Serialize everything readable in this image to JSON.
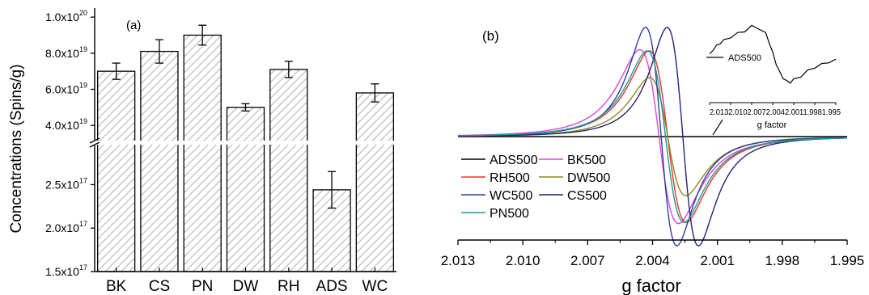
{
  "figure": {
    "panel_a_label": "(a)",
    "panel_b_label": "(b)"
  },
  "chart_data": [
    {
      "type": "bar",
      "panel": "(a)",
      "ylabel": "Concentrations (Spins/g)",
      "xlabel": "",
      "categories": [
        "BK",
        "CS",
        "PN",
        "DW",
        "RH",
        "ADS",
        "WC"
      ],
      "values": [
        7e+19,
        8.1e+19,
        9e+19,
        5e+19,
        7.1e+19,
        2.44e+17,
        5.8e+19
      ],
      "errors": [
        4.5e+18,
        6.5e+18,
        5.5e+18,
        2e+18,
        4.5e+18,
        2.1e+16,
        5e+18
      ],
      "axis_break": true,
      "upper_segment": {
        "range": [
          3.2e+19,
          1.05e+20
        ],
        "ticks": [
          {
            "value": 4e+19,
            "mant": "4.0x10",
            "exp": "19"
          },
          {
            "value": 6e+19,
            "mant": "6.0x10",
            "exp": "19"
          },
          {
            "value": 8e+19,
            "mant": "8.0x10",
            "exp": "19"
          },
          {
            "value": 1e+20,
            "mant": "1.0x10",
            "exp": "20"
          }
        ]
      },
      "lower_segment": {
        "range": [
          1.5e+17,
          2.95e+17
        ],
        "ticks": [
          {
            "value": 1.5e+17,
            "mant": "1.5x10",
            "exp": "17"
          },
          {
            "value": 2e+17,
            "mant": "2.0x10",
            "exp": "17"
          },
          {
            "value": 2.5e+17,
            "mant": "2.5x10",
            "exp": "17"
          }
        ]
      },
      "bar_fill": "hatched"
    },
    {
      "type": "line",
      "panel": "(b)",
      "xlabel": "g factor",
      "ylabel": "",
      "xlim": [
        2.013,
        1.995
      ],
      "x_reversed": true,
      "xticks": [
        "2.013",
        "2.010",
        "2.007",
        "2.004",
        "2.001",
        "1.998",
        "1.995"
      ],
      "series": [
        {
          "name": "ADS500",
          "color": "#000000",
          "g0": 2.0037,
          "width": 0.0,
          "amplitude": 0.0
        },
        {
          "name": "BK500",
          "color": "#dd44dd",
          "g0": 2.0037,
          "width": 0.00155,
          "amplitude": 0.78
        },
        {
          "name": "RH500",
          "color": "#e8352b",
          "g0": 2.0033,
          "width": 0.00148,
          "amplitude": 0.77
        },
        {
          "name": "DW500",
          "color": "#8a8a1e",
          "g0": 2.0033,
          "width": 0.00145,
          "amplitude": 0.53
        },
        {
          "name": "WC500",
          "color": "#2f3f9e",
          "g0": 2.0036,
          "width": 0.00125,
          "amplitude": 0.98
        },
        {
          "name": "CS500",
          "color": "#23237a",
          "g0": 2.0026,
          "width": 0.00125,
          "amplitude": 0.98
        },
        {
          "name": "PN500",
          "color": "#1e9a96",
          "g0": 2.0034,
          "width": 0.00148,
          "amplitude": 0.77
        }
      ],
      "inset": {
        "series_name": "ADS500",
        "xlabel": "g factor",
        "xlim": [
          2.013,
          1.995
        ],
        "xticks": [
          "2.013",
          "2.010",
          "2.007",
          "2.004",
          "2.001",
          "1.998",
          "1.995"
        ],
        "points": [
          [
            2.013,
            0.05
          ],
          [
            2.0125,
            0.2
          ],
          [
            2.012,
            0.3
          ],
          [
            2.0115,
            0.38
          ],
          [
            2.011,
            0.45
          ],
          [
            2.01,
            0.55
          ],
          [
            2.009,
            0.65
          ],
          [
            2.008,
            0.72
          ],
          [
            2.007,
            0.85
          ],
          [
            2.006,
            0.8
          ],
          [
            2.005,
            0.65
          ],
          [
            2.0045,
            0.4
          ],
          [
            2.004,
            0.1
          ],
          [
            2.0035,
            -0.2
          ],
          [
            2.003,
            -0.45
          ],
          [
            2.0025,
            -0.6
          ],
          [
            2.002,
            -0.7
          ],
          [
            2.0015,
            -0.72
          ],
          [
            2.001,
            -0.65
          ],
          [
            2.0,
            -0.55
          ],
          [
            1.999,
            -0.4
          ],
          [
            1.998,
            -0.3
          ],
          [
            1.997,
            -0.22
          ],
          [
            1.996,
            -0.15
          ],
          [
            1.995,
            -0.1
          ]
        ]
      }
    }
  ]
}
